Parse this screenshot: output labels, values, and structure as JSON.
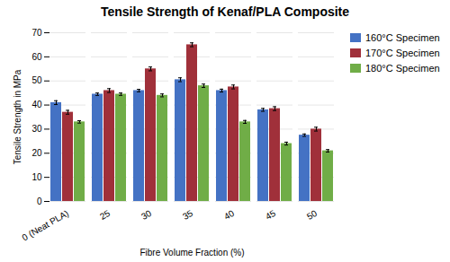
{
  "chart_data": {
    "type": "bar",
    "title": "Tensile Strength of Kenaf/PLA Composite",
    "xlabel": "Fibre Volume Fraction (%)",
    "ylabel": "Tensile Strength in MPa",
    "categories": [
      "0 (Neat PLA)",
      "25",
      "30",
      "35",
      "40",
      "45",
      "50"
    ],
    "series": [
      {
        "name": "160°C Specimen",
        "color": "#4472C4",
        "values": [
          41,
          44.5,
          46,
          50.5,
          46,
          38,
          27.5
        ],
        "errors": [
          0.8,
          0.5,
          0.5,
          0.8,
          0.6,
          0.6,
          0.5
        ]
      },
      {
        "name": "170°C Specimen",
        "color": "#A0303A",
        "values": [
          37,
          46,
          55,
          65,
          47.5,
          38.5,
          30
        ],
        "errors": [
          0.8,
          0.8,
          0.8,
          0.8,
          0.8,
          0.8,
          0.8
        ]
      },
      {
        "name": "180°C Specimen",
        "color": "#70AD47",
        "values": [
          33,
          44.5,
          44,
          48,
          33,
          24,
          21
        ],
        "errors": [
          0.5,
          0.5,
          0.6,
          0.7,
          0.6,
          0.6,
          0.5
        ]
      }
    ],
    "ylim": [
      0,
      70
    ],
    "yticks": [
      0,
      10,
      20,
      30,
      40,
      50,
      60,
      70
    ],
    "grid": true,
    "legend": "right"
  }
}
